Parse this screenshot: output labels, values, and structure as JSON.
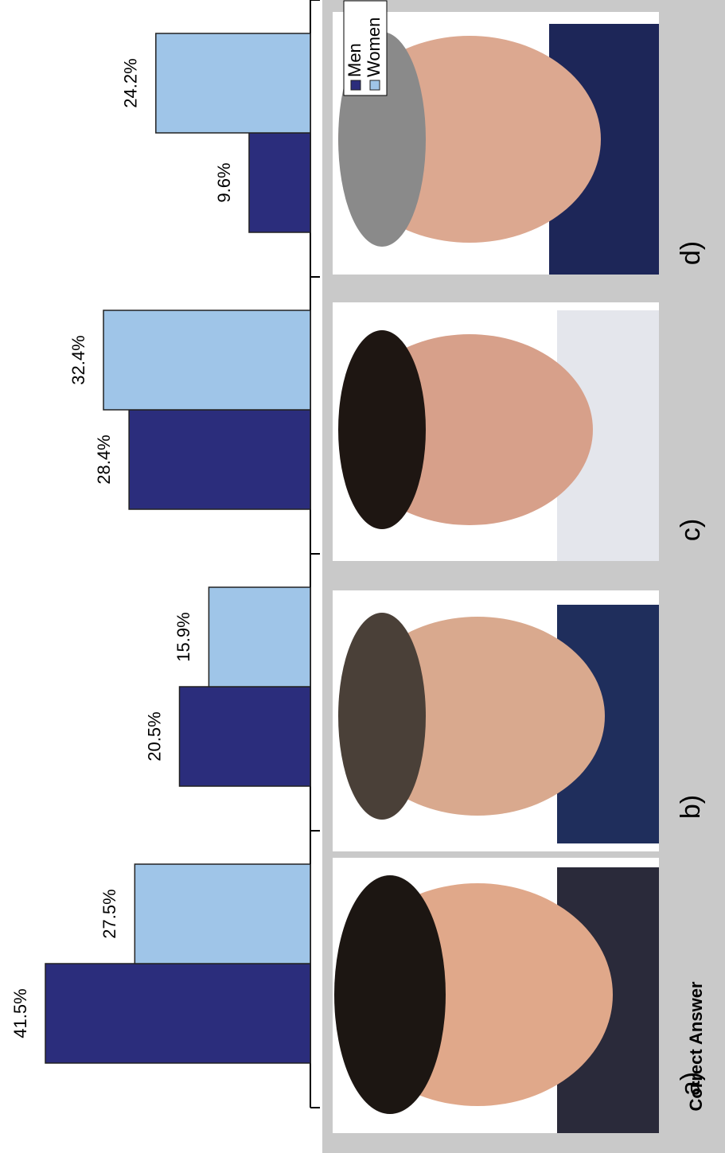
{
  "chart_data": {
    "type": "bar",
    "categories": [
      "a)",
      "b)",
      "c)",
      "d)"
    ],
    "series": [
      {
        "name": "Men",
        "color": "#2b2d7c",
        "values": [
          41.5,
          20.5,
          28.4,
          9.6
        ],
        "value_labels": [
          "41.5%",
          "20.5%",
          "28.4%",
          "9.6%"
        ]
      },
      {
        "name": "Women",
        "color": "#9fc5e8",
        "values": [
          27.5,
          15.9,
          32.4,
          24.2
        ],
        "value_labels": [
          "27.5%",
          "15.9%",
          "32.4%",
          "24.2%"
        ]
      }
    ],
    "annotation": "Correct Answer"
  }
}
